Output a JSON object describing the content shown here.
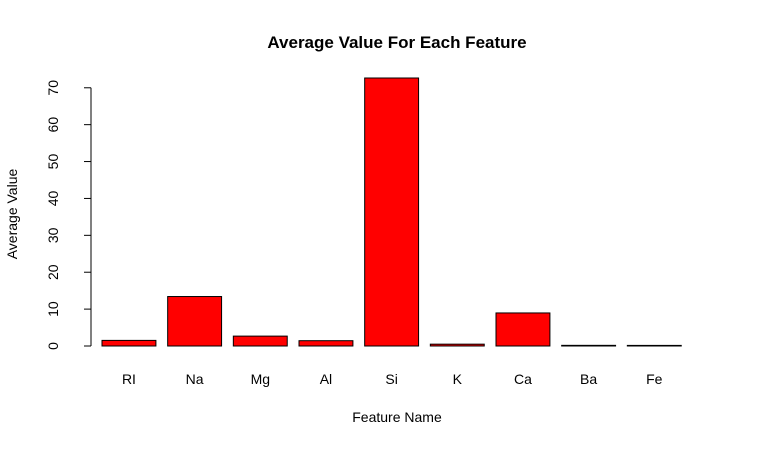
{
  "chart_data": {
    "type": "bar",
    "title": "Average Value For Each Feature",
    "xlabel": "Feature Name",
    "ylabel": "Average Value",
    "categories": [
      "RI",
      "Na",
      "Mg",
      "Al",
      "Si",
      "K",
      "Ca",
      "Ba",
      "Fe"
    ],
    "values": [
      1.52,
      13.41,
      2.68,
      1.44,
      72.65,
      0.5,
      8.96,
      0.18,
      0.06
    ],
    "ylim": [
      0,
      72.65
    ],
    "yticks": [
      "0",
      "10",
      "20",
      "30",
      "40",
      "50",
      "60",
      "70"
    ],
    "grid": false,
    "legend": "none",
    "bar_color": "#ff0000",
    "bar_border_color": "#000000"
  }
}
